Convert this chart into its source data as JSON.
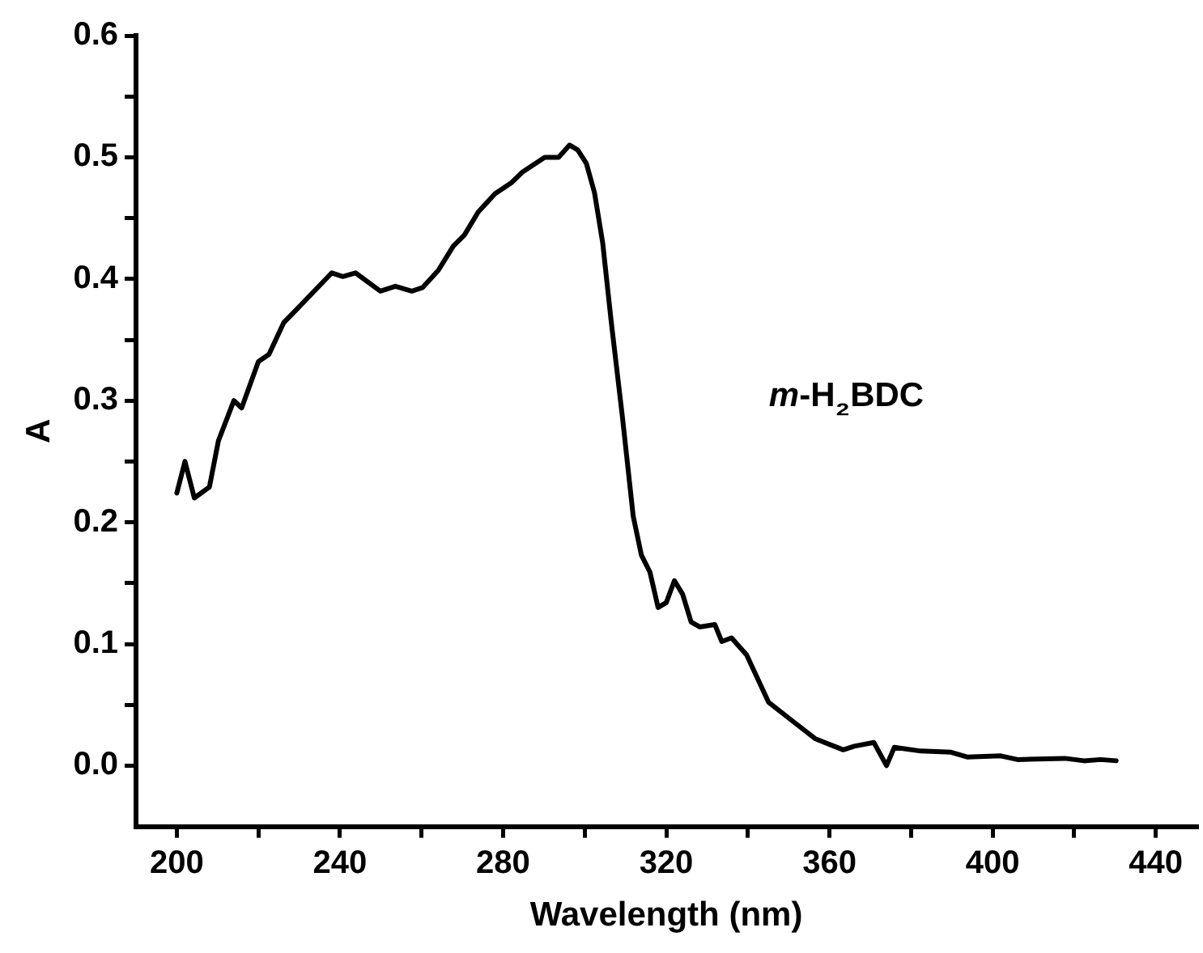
{
  "chart_data": {
    "type": "line",
    "xlabel": "Wavelength (nm)",
    "ylabel": "A",
    "annotations": [
      "m-H₂BDC"
    ],
    "grid": false,
    "legend": false,
    "marker": "none",
    "line_style": "solid",
    "xlim": [
      190,
      450
    ],
    "xticks": [
      200,
      {
        "value": 220,
        "label": null
      },
      240,
      {
        "value": 260,
        "label": null
      },
      280,
      {
        "value": 300,
        "label": null
      },
      320,
      {
        "value": 340,
        "label": null
      },
      360,
      {
        "value": 380,
        "label": null
      },
      400,
      {
        "value": 420,
        "label": null
      },
      440
    ],
    "ylim": [
      -0.05,
      0.6
    ],
    "yticks": [
      {
        "value": 0,
        "label": "0.0"
      },
      {
        "value": 0.05,
        "label": null
      },
      0.1,
      {
        "value": 0.15,
        "label": null
      },
      0.2,
      {
        "value": 0.25,
        "label": null
      },
      0.3,
      {
        "value": 0.35,
        "label": null
      },
      0.4,
      {
        "value": 0.45,
        "label": null
      },
      0.5,
      {
        "value": 0.55,
        "label": null
      },
      0.6
    ],
    "x": [
      200,
      202,
      204.3,
      208,
      210.2,
      214,
      215.9,
      220,
      222.6,
      226.2,
      229.4,
      238,
      240.7,
      243.8,
      249.9,
      253.6,
      257.6,
      260.3,
      264.1,
      267.8,
      270.5,
      273.9,
      278,
      282,
      284.8,
      290.2,
      293.6,
      296.3,
      298.3,
      300.4,
      302.4,
      304.4,
      306.5,
      309.2,
      311.9,
      313.9,
      316,
      318,
      320,
      322,
      324,
      326.1,
      328.2,
      331.9,
      333.6,
      336,
      339.7,
      345.1,
      351.2,
      356.6,
      363.4,
      366.1,
      370.9,
      374,
      375.9,
      382.4,
      389.8,
      393.9,
      402,
      406.1,
      417.7,
      422.4,
      426.5,
      430.3
    ],
    "series": [
      {
        "color": "#000000",
        "values": [
          0.224,
          0.25,
          0.22,
          0.229,
          0.267,
          0.3,
          0.294,
          0.332,
          0.338,
          0.364,
          0.375,
          0.405,
          0.402,
          0.405,
          0.39,
          0.394,
          0.39,
          0.393,
          0.407,
          0.427,
          0.436,
          0.455,
          0.47,
          0.479,
          0.488,
          0.5,
          0.5,
          0.51,
          0.506,
          0.495,
          0.471,
          0.43,
          0.365,
          0.288,
          0.205,
          0.173,
          0.159,
          0.13,
          0.134,
          0.152,
          0.141,
          0.118,
          0.114,
          0.116,
          0.102,
          0.105,
          0.091,
          0.052,
          0.036,
          0.022,
          0.013,
          0.016,
          0.019,
          0.0,
          0.015,
          0.012,
          0.011,
          0.007,
          0.008,
          0.005,
          0.006,
          0.004,
          0.005,
          0.004
        ]
      }
    ]
  }
}
